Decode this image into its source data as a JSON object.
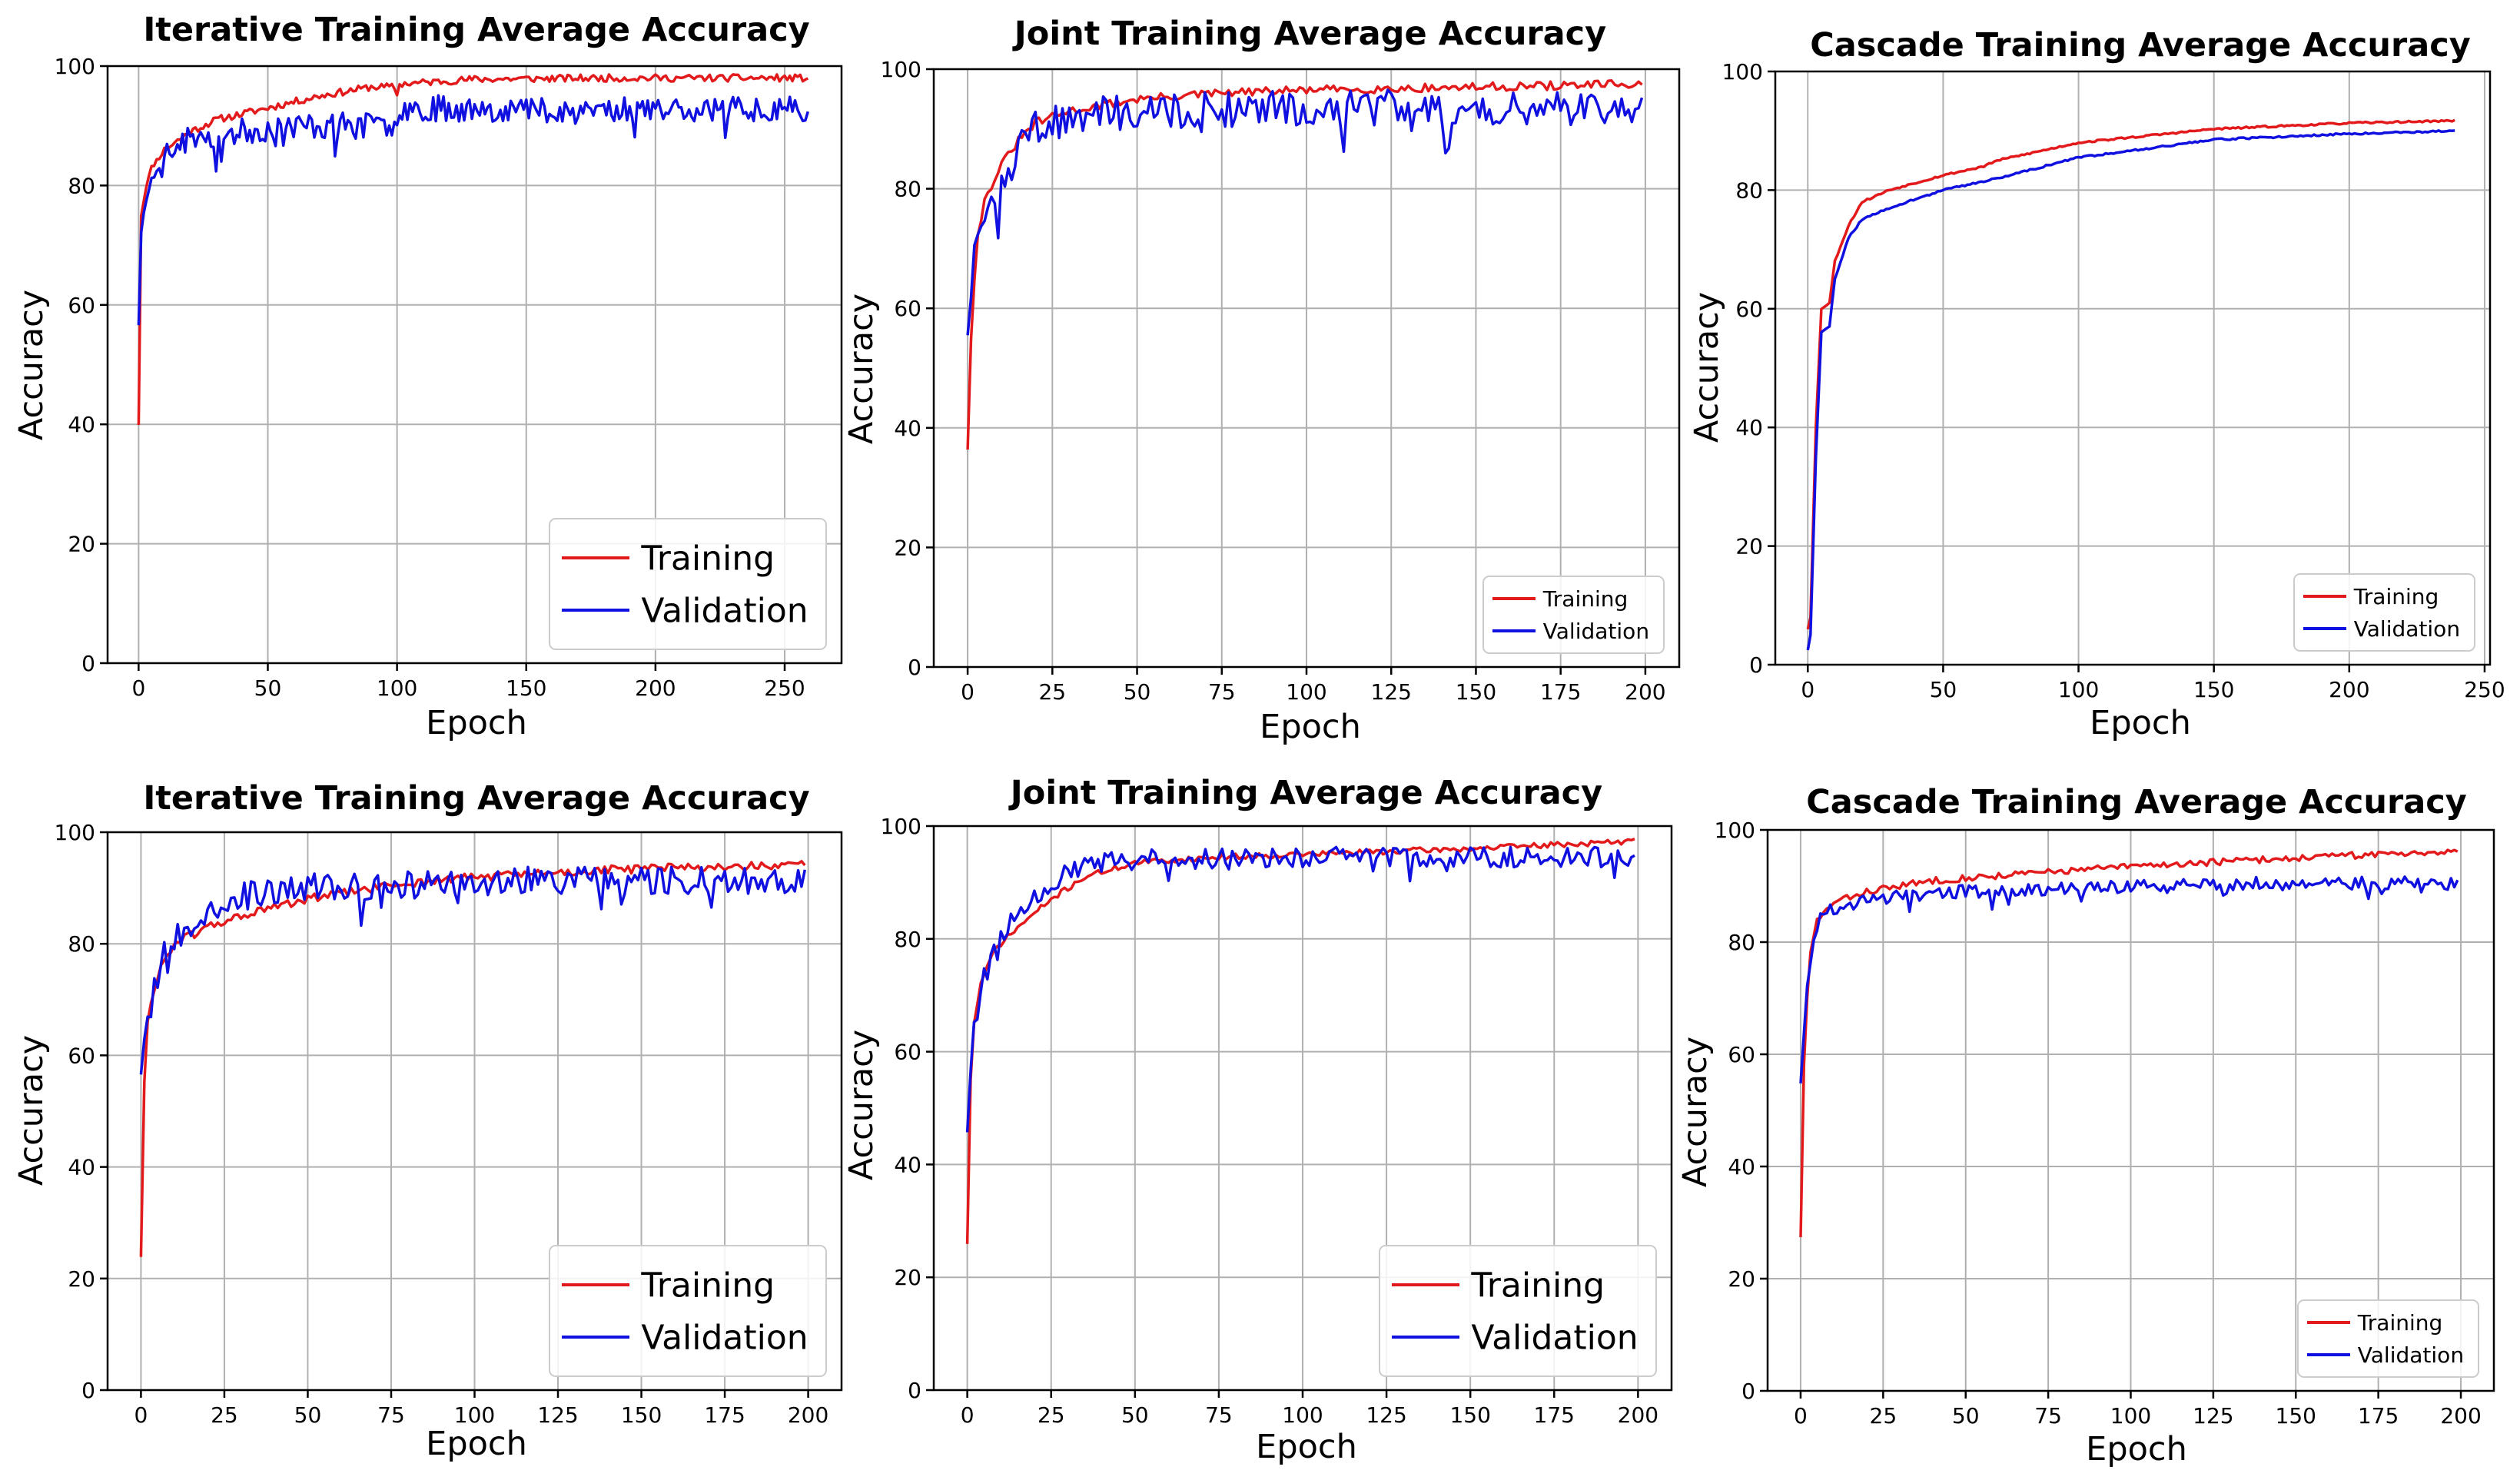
{
  "legend_labels": [
    "Training",
    "Validation"
  ],
  "colors": {
    "training": "#e31a1c",
    "validation": "#1010e0",
    "grid": "#b0b0b0",
    "axes": "#000000"
  },
  "chart_data": [
    {
      "type": "line",
      "title": "Iterative Training Average Accuracy",
      "xlabel": "Epoch",
      "ylabel": "Accuracy",
      "xlim": [
        -12,
        272
      ],
      "ylim": [
        0,
        100
      ],
      "xticks": [
        0,
        50,
        100,
        150,
        200,
        250
      ],
      "yticks": [
        0,
        20,
        40,
        60,
        80,
        100
      ],
      "epochs": 260,
      "legend": "bottom-right",
      "legend_size": "large",
      "grid": true,
      "series": [
        {
          "name": "Training",
          "color": "#e31a1c",
          "noise": 0.6,
          "seed": 11,
          "points": [
            [
              0,
              40
            ],
            [
              1,
              75
            ],
            [
              3,
              80
            ],
            [
              5,
              83
            ],
            [
              10,
              86
            ],
            [
              20,
              89
            ],
            [
              30,
              91
            ],
            [
              50,
              93
            ],
            [
              70,
              95
            ],
            [
              90,
              96.5
            ],
            [
              99,
              96.5
            ],
            [
              100,
              95
            ],
            [
              101,
              97
            ],
            [
              130,
              97.8
            ],
            [
              180,
              98
            ],
            [
              259,
              98
            ]
          ]
        },
        {
          "name": "Validation",
          "color": "#1010e0",
          "noise": 2.2,
          "seed": 23,
          "points": [
            [
              0,
              57
            ],
            [
              1,
              72
            ],
            [
              3,
              78
            ],
            [
              5,
              82
            ],
            [
              10,
              85
            ],
            [
              20,
              88
            ],
            [
              40,
              89
            ],
            [
              60,
              90
            ],
            [
              99,
              90
            ],
            [
              100,
              92
            ],
            [
              101,
              93
            ],
            [
              150,
              92.8
            ],
            [
              259,
              93
            ]
          ]
        }
      ]
    },
    {
      "type": "line",
      "title": "Joint Training Average Accuracy",
      "xlabel": "Epoch",
      "ylabel": "Accuracy",
      "xlim": [
        -10,
        210
      ],
      "ylim": [
        0,
        100
      ],
      "xticks": [
        0,
        25,
        50,
        75,
        100,
        125,
        150,
        175,
        200
      ],
      "yticks": [
        0,
        20,
        40,
        60,
        80,
        100
      ],
      "epochs": 200,
      "legend": "bottom-right",
      "legend_size": "small",
      "grid": true,
      "series": [
        {
          "name": "Training",
          "color": "#e31a1c",
          "noise": 0.7,
          "seed": 31,
          "points": [
            [
              0,
              36.5
            ],
            [
              1,
              55
            ],
            [
              2,
              65
            ],
            [
              3,
              72
            ],
            [
              5,
              78
            ],
            [
              10,
              84
            ],
            [
              15,
              88
            ],
            [
              20,
              91
            ],
            [
              30,
              93
            ],
            [
              50,
              95
            ],
            [
              75,
              96
            ],
            [
              100,
              96.5
            ],
            [
              150,
              97
            ],
            [
              199,
              97.5
            ]
          ]
        },
        {
          "name": "Validation",
          "color": "#1010e0",
          "noise": 3.0,
          "seed": 47,
          "points": [
            [
              0,
              56
            ],
            [
              2,
              70
            ],
            [
              5,
              76
            ],
            [
              10,
              80
            ],
            [
              15,
              86
            ],
            [
              20,
              90
            ],
            [
              30,
              92
            ],
            [
              50,
              93
            ],
            [
              100,
              93.5
            ],
            [
              150,
              93.8
            ],
            [
              199,
              93.5
            ]
          ]
        }
      ]
    },
    {
      "type": "line",
      "title": "Cascade Training Average Accuracy",
      "xlabel": "Epoch",
      "ylabel": "Accuracy",
      "xlim": [
        -12,
        252
      ],
      "ylim": [
        0,
        100
      ],
      "xticks": [
        0,
        50,
        100,
        150,
        200,
        250
      ],
      "yticks": [
        0,
        20,
        40,
        60,
        80,
        100
      ],
      "epochs": 240,
      "legend": "bottom-right",
      "legend_size": "small",
      "grid": true,
      "series": [
        {
          "name": "Training",
          "color": "#e31a1c",
          "noise": 0.15,
          "seed": 53,
          "points": [
            [
              0,
              6
            ],
            [
              1,
              8
            ],
            [
              3,
              40
            ],
            [
              5,
              60
            ],
            [
              8,
              61
            ],
            [
              10,
              68
            ],
            [
              15,
              74
            ],
            [
              20,
              78
            ],
            [
              30,
              80
            ],
            [
              50,
              82.5
            ],
            [
              65,
              84
            ],
            [
              70,
              85
            ],
            [
              100,
              88
            ],
            [
              150,
              90.3
            ],
            [
              200,
              91.3
            ],
            [
              239,
              91.7
            ]
          ]
        },
        {
          "name": "Validation",
          "color": "#1010e0",
          "noise": 0.15,
          "seed": 59,
          "points": [
            [
              0,
              2.5
            ],
            [
              1,
              5
            ],
            [
              3,
              35
            ],
            [
              5,
              56
            ],
            [
              8,
              57
            ],
            [
              10,
              65
            ],
            [
              15,
              72
            ],
            [
              20,
              75
            ],
            [
              30,
              77
            ],
            [
              50,
              80
            ],
            [
              70,
              82
            ],
            [
              100,
              85.5
            ],
            [
              150,
              88.5
            ],
            [
              200,
              89.5
            ],
            [
              239,
              90
            ]
          ]
        }
      ]
    },
    {
      "type": "line",
      "title": "Iterative Training Average Accuracy",
      "xlabel": "Epoch",
      "ylabel": "Accuracy",
      "xlim": [
        -10,
        210
      ],
      "ylim": [
        0,
        100
      ],
      "xticks": [
        0,
        25,
        50,
        75,
        100,
        125,
        150,
        175,
        200
      ],
      "yticks": [
        0,
        20,
        40,
        60,
        80,
        100
      ],
      "epochs": 200,
      "legend": "bottom-right",
      "legend_size": "large",
      "grid": true,
      "series": [
        {
          "name": "Training",
          "color": "#e31a1c",
          "noise": 0.8,
          "seed": 61,
          "points": [
            [
              0,
              24
            ],
            [
              1,
              55
            ],
            [
              2,
              66
            ],
            [
              4,
              72
            ],
            [
              6,
              76
            ],
            [
              10,
              80
            ],
            [
              20,
              83
            ],
            [
              30,
              85
            ],
            [
              50,
              88
            ],
            [
              75,
              90.5
            ],
            [
              100,
              92
            ],
            [
              150,
              93.5
            ],
            [
              199,
              94
            ]
          ]
        },
        {
          "name": "Validation",
          "color": "#1010e0",
          "noise": 2.6,
          "seed": 67,
          "points": [
            [
              0,
              57
            ],
            [
              2,
              68
            ],
            [
              4,
              74
            ],
            [
              8,
              80
            ],
            [
              15,
              84
            ],
            [
              25,
              88
            ],
            [
              50,
              90
            ],
            [
              100,
              91
            ],
            [
              150,
              91.5
            ],
            [
              199,
              91.5
            ]
          ]
        }
      ]
    },
    {
      "type": "line",
      "title": "Joint Training Average Accuracy",
      "xlabel": "Epoch",
      "ylabel": "Accuracy",
      "xlim": [
        -10,
        210
      ],
      "ylim": [
        0,
        100
      ],
      "xticks": [
        0,
        25,
        50,
        75,
        100,
        125,
        150,
        175,
        200
      ],
      "yticks": [
        0,
        20,
        40,
        60,
        80,
        100
      ],
      "epochs": 200,
      "legend": "bottom-right",
      "legend_size": "large",
      "grid": true,
      "series": [
        {
          "name": "Training",
          "color": "#e31a1c",
          "noise": 0.5,
          "seed": 71,
          "points": [
            [
              0,
              26
            ],
            [
              1,
              55
            ],
            [
              2,
              65
            ],
            [
              4,
              72
            ],
            [
              8,
              78
            ],
            [
              15,
              82
            ],
            [
              25,
              87
            ],
            [
              35,
              91
            ],
            [
              50,
              93.5
            ],
            [
              75,
              94.5
            ],
            [
              100,
              95
            ],
            [
              150,
              96
            ],
            [
              199,
              97.3
            ]
          ]
        },
        {
          "name": "Validation",
          "color": "#1010e0",
          "noise": 1.8,
          "seed": 79,
          "points": [
            [
              0,
              46
            ],
            [
              2,
              66
            ],
            [
              5,
              74
            ],
            [
              10,
              80
            ],
            [
              15,
              85
            ],
            [
              25,
              90
            ],
            [
              35,
              93
            ],
            [
              50,
              94
            ],
            [
              100,
              94.5
            ],
            [
              150,
              94.5
            ],
            [
              199,
              94.5
            ]
          ]
        }
      ]
    },
    {
      "type": "line",
      "title": "Cascade Training Average Accuracy",
      "xlabel": "Epoch",
      "ylabel": "Accuracy",
      "xlim": [
        -10,
        210
      ],
      "ylim": [
        0,
        100
      ],
      "xticks": [
        0,
        25,
        50,
        75,
        100,
        125,
        150,
        175,
        200
      ],
      "yticks": [
        0,
        20,
        40,
        60,
        80,
        100
      ],
      "epochs": 200,
      "legend": "bottom-right",
      "legend_size": "small",
      "grid": true,
      "series": [
        {
          "name": "Training",
          "color": "#e31a1c",
          "noise": 0.6,
          "seed": 83,
          "points": [
            [
              0,
              27.5
            ],
            [
              1,
              58
            ],
            [
              2,
              70
            ],
            [
              3,
              78
            ],
            [
              5,
              84
            ],
            [
              10,
              87
            ],
            [
              20,
              89
            ],
            [
              40,
              91
            ],
            [
              75,
              92.5
            ],
            [
              100,
              93.5
            ],
            [
              150,
              95
            ],
            [
              199,
              96.3
            ]
          ]
        },
        {
          "name": "Validation",
          "color": "#1010e0",
          "noise": 1.2,
          "seed": 89,
          "points": [
            [
              0,
              55
            ],
            [
              2,
              72
            ],
            [
              4,
              80
            ],
            [
              6,
              85
            ],
            [
              10,
              86
            ],
            [
              25,
              88
            ],
            [
              50,
              89
            ],
            [
              100,
              90
            ],
            [
              150,
              90.5
            ],
            [
              199,
              90.5
            ]
          ]
        }
      ]
    }
  ]
}
